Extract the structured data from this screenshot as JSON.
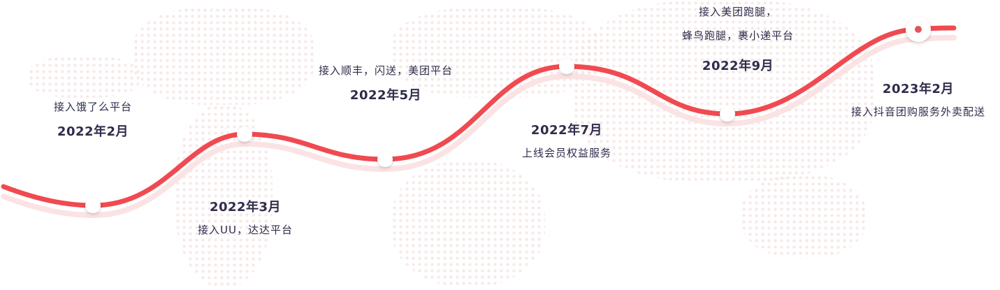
{
  "colors": {
    "line": "#f04a50",
    "text": "#2e2c4a",
    "node": "#ffffff"
  },
  "milestones": [
    {
      "date": "2022年2月",
      "desc": "接入饿了么平台"
    },
    {
      "date": "2022年3月",
      "desc": "接入UU，达达平台"
    },
    {
      "date": "2022年5月",
      "desc": "接入顺丰，闪送，美团平台"
    },
    {
      "date": "2022年7月",
      "desc": "上线会员权益服务"
    },
    {
      "date": "2022年9月",
      "desc_line1": "接入美团跑腿，",
      "desc_line2": "蜂鸟跑腿，裹小递平台"
    },
    {
      "date": "2023年2月",
      "desc": "接入抖音团购服务外卖配送"
    }
  ]
}
